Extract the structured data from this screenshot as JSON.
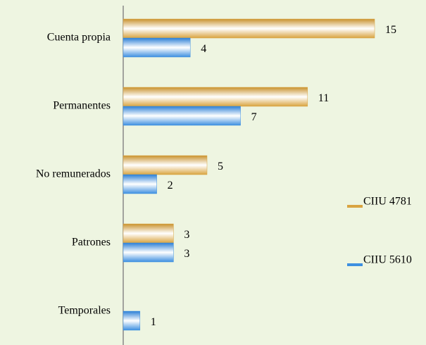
{
  "chart_data": {
    "type": "bar",
    "orientation": "horizontal",
    "categories": [
      "Cuenta propia",
      "Permanentes",
      "No remunerados",
      "Patrones",
      "Temporales"
    ],
    "series": [
      {
        "name": "CIIU 4781",
        "color": "#d9a441",
        "values": [
          15,
          11,
          5,
          3,
          null
        ]
      },
      {
        "name": "CIIU 5610",
        "color": "#3d8fe0",
        "values": [
          4,
          7,
          2,
          3,
          1
        ]
      }
    ],
    "legend": "right"
  }
}
